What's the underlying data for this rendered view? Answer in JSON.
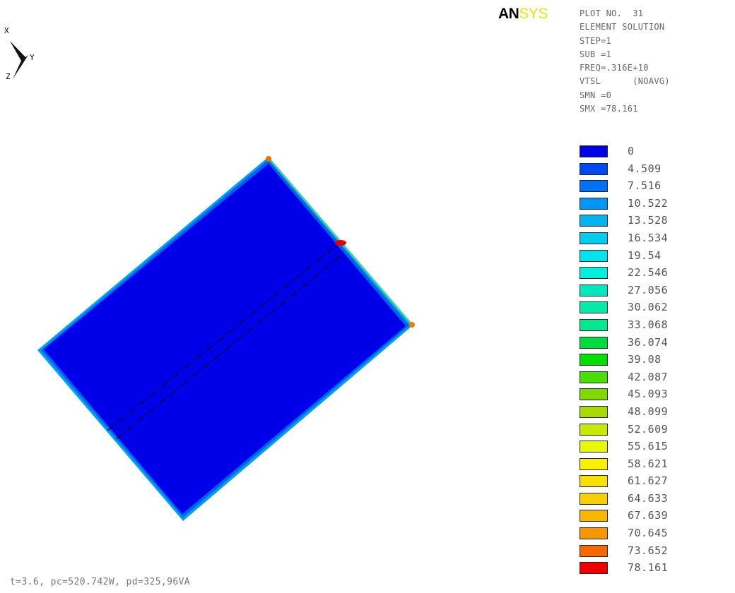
{
  "triad": {
    "x_label": "X",
    "y_label": "Y",
    "z_label": "Z"
  },
  "logo": {
    "an": "AN",
    "sys": "SYS"
  },
  "info": [
    "PLOT NO.  31",
    "ELEMENT SOLUTION",
    "STEP=1",
    "SUB =1",
    "FREQ=.316E+10",
    "VTSL      (NOAVG)",
    "SMN =0",
    "SMX =78.161"
  ],
  "legend": [
    {
      "value": "0",
      "color": "#0000e6"
    },
    {
      "value": "4.509",
      "color": "#0048f0"
    },
    {
      "value": "7.516",
      "color": "#0070f4"
    },
    {
      "value": "10.522",
      "color": "#0096f6"
    },
    {
      "value": "13.528",
      "color": "#00b4f4"
    },
    {
      "value": "16.534",
      "color": "#00ccf0"
    },
    {
      "value": "19.54",
      "color": "#00e4ee"
    },
    {
      "value": "22.546",
      "color": "#00f0e0"
    },
    {
      "value": "27.056",
      "color": "#00e8c0"
    },
    {
      "value": "30.062",
      "color": "#00eca8"
    },
    {
      "value": "33.068",
      "color": "#00e890"
    },
    {
      "value": "36.074",
      "color": "#00dc40"
    },
    {
      "value": "39.08",
      "color": "#00e000"
    },
    {
      "value": "42.087",
      "color": "#48e000"
    },
    {
      "value": "45.093",
      "color": "#80d800"
    },
    {
      "value": "48.099",
      "color": "#a8dc00"
    },
    {
      "value": "52.609",
      "color": "#c8e800"
    },
    {
      "value": "55.615",
      "color": "#e8f800"
    },
    {
      "value": "58.621",
      "color": "#f8f000"
    },
    {
      "value": "61.627",
      "color": "#f8e000"
    },
    {
      "value": "64.633",
      "color": "#f8d000"
    },
    {
      "value": "67.639",
      "color": "#f8b800"
    },
    {
      "value": "70.645",
      "color": "#f89800"
    },
    {
      "value": "73.652",
      "color": "#f86800"
    },
    {
      "value": "78.161",
      "color": "#f00000"
    }
  ],
  "footnote": "t=3.6, pc=520.742W, pd=325,96VA"
}
